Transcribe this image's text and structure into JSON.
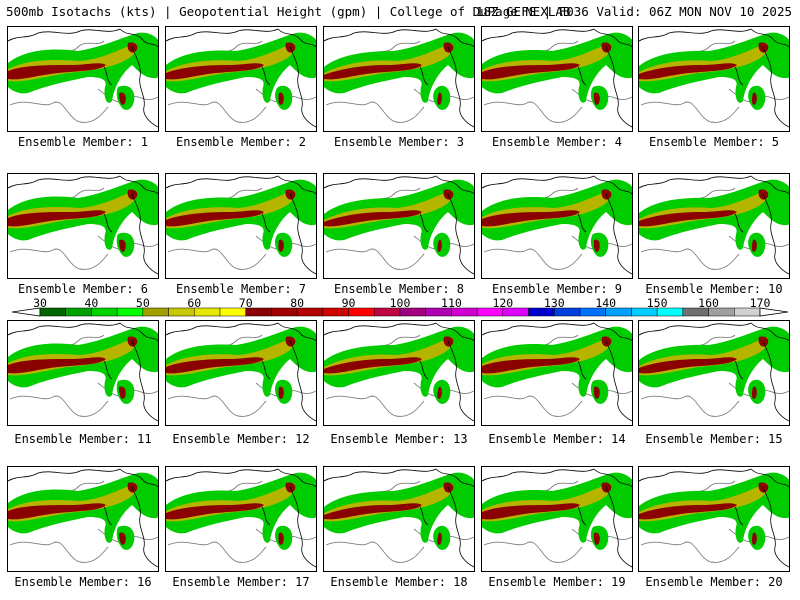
{
  "header": {
    "title_left": "500mb Isotachs (kts) | Geopotential Height (gpm) | College of DuPage NEXLAB",
    "title_right": "18Z GEFS | F036 Valid: 06Z MON NOV 10 2025"
  },
  "colorbar": {
    "ticks": [
      "30",
      "40",
      "50",
      "60",
      "70",
      "80",
      "90",
      "100",
      "110",
      "120",
      "130",
      "140",
      "150",
      "160",
      "170"
    ],
    "colors": [
      "#006400",
      "#00a000",
      "#00d400",
      "#00ff00",
      "#a0a000",
      "#c8c800",
      "#e6e600",
      "#ffff00",
      "#8b0000",
      "#a00000",
      "#b40000",
      "#d20000",
      "#ff0000",
      "#c00040",
      "#a00080",
      "#b000b0",
      "#d000d0",
      "#ff00ff",
      "#e000ff",
      "#0000cc",
      "#0040e0",
      "#0070ff",
      "#00a0ff",
      "#00ccff",
      "#00ffff",
      "#707070",
      "#a0a0a0",
      "#d0d0d0"
    ]
  },
  "map_colors": {
    "fill_low": "#00cc00",
    "fill_mid": "#b5b500",
    "fill_high": "#8b0000",
    "coast": "#000000",
    "height": "#808080"
  },
  "panels": [
    {
      "label": "Ensemble Member: 1"
    },
    {
      "label": "Ensemble Member: 2"
    },
    {
      "label": "Ensemble Member: 3"
    },
    {
      "label": "Ensemble Member: 4"
    },
    {
      "label": "Ensemble Member: 5"
    },
    {
      "label": "Ensemble Member: 6"
    },
    {
      "label": "Ensemble Member: 7"
    },
    {
      "label": "Ensemble Member: 8"
    },
    {
      "label": "Ensemble Member: 9"
    },
    {
      "label": "Ensemble Member: 10"
    },
    {
      "label": "Ensemble Member: 11"
    },
    {
      "label": "Ensemble Member: 12"
    },
    {
      "label": "Ensemble Member: 13"
    },
    {
      "label": "Ensemble Member: 14"
    },
    {
      "label": "Ensemble Member: 15"
    },
    {
      "label": "Ensemble Member: 16"
    },
    {
      "label": "Ensemble Member: 17"
    },
    {
      "label": "Ensemble Member: 18"
    },
    {
      "label": "Ensemble Member: 19"
    },
    {
      "label": "Ensemble Member: 20"
    }
  ]
}
